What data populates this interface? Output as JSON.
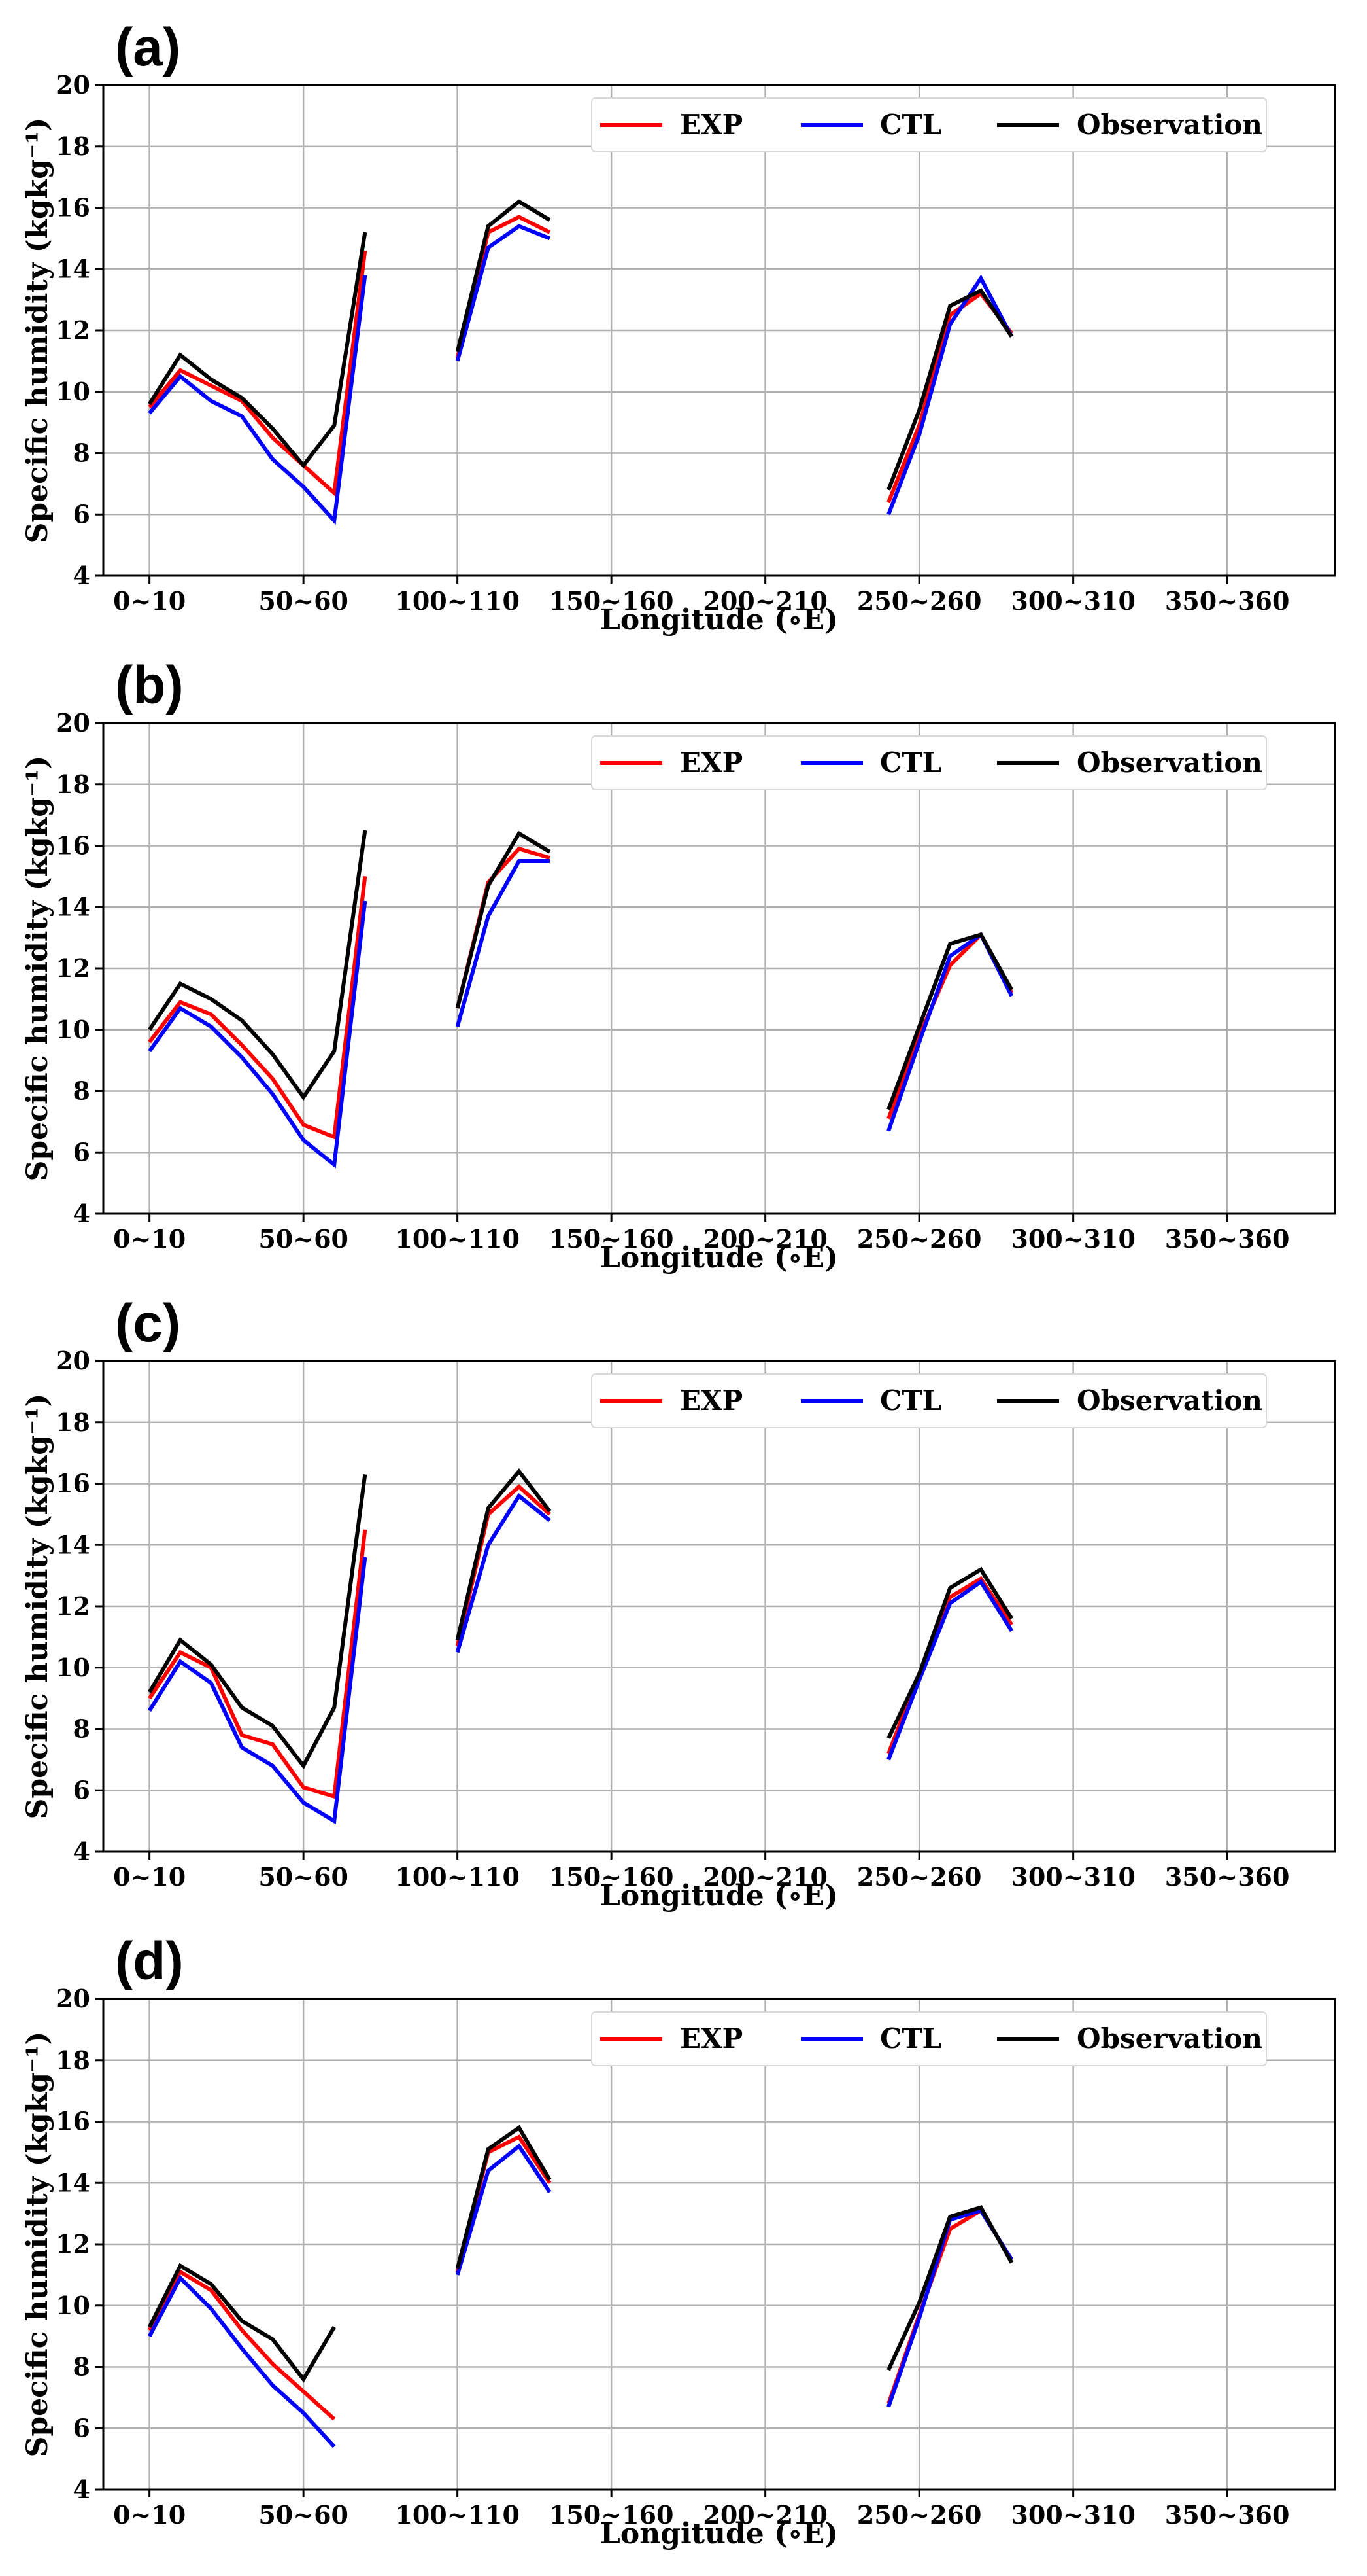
{
  "chart_data": [
    {
      "type": "line",
      "panel_label": "(a)",
      "xlabel": "Longitude (∘E)",
      "ylabel": "Specific humidity (kgkg⁻¹)",
      "xlim": [
        -3,
        77
      ],
      "ylim": [
        4,
        20
      ],
      "yticks": [
        4,
        6,
        8,
        10,
        12,
        14,
        16,
        18,
        20
      ],
      "xtick_positions": [
        0,
        10,
        20,
        30,
        40,
        50,
        60,
        70
      ],
      "xtick_labels": [
        "0~10",
        "50~60",
        "100~110",
        "150~160",
        "200~210",
        "250~260",
        "300~310",
        "350~360"
      ],
      "legend": [
        "EXP",
        "CTL",
        "Observation"
      ],
      "series": [
        {
          "name": "EXP",
          "color": "#ff0000",
          "segments": [
            {
              "x": [
                0,
                2,
                4,
                6,
                8,
                10,
                12,
                14
              ],
              "y": [
                9.5,
                10.7,
                10.2,
                9.7,
                8.5,
                7.6,
                6.7,
                14.6
              ]
            },
            {
              "x": [
                20,
                22,
                24,
                26
              ],
              "y": [
                11.1,
                15.2,
                15.7,
                15.2
              ]
            },
            {
              "x": [
                48,
                50,
                52,
                54,
                56
              ],
              "y": [
                6.4,
                8.9,
                12.5,
                13.2,
                11.9
              ]
            }
          ]
        },
        {
          "name": "CTL",
          "color": "#0000ff",
          "segments": [
            {
              "x": [
                0,
                2,
                4,
                6,
                8,
                10,
                12,
                14
              ],
              "y": [
                9.3,
                10.5,
                9.7,
                9.2,
                7.8,
                6.9,
                5.8,
                13.8
              ]
            },
            {
              "x": [
                20,
                22,
                24,
                26
              ],
              "y": [
                11.0,
                14.7,
                15.4,
                15.0
              ]
            },
            {
              "x": [
                48,
                50,
                52,
                54,
                56
              ],
              "y": [
                6.0,
                8.6,
                12.2,
                13.7,
                11.8
              ]
            }
          ]
        },
        {
          "name": "Observation",
          "color": "#000000",
          "segments": [
            {
              "x": [
                0,
                2,
                4,
                6,
                8,
                10,
                12,
                14
              ],
              "y": [
                9.6,
                11.2,
                10.4,
                9.8,
                8.8,
                7.6,
                8.9,
                15.2
              ]
            },
            {
              "x": [
                20,
                22,
                24,
                26
              ],
              "y": [
                11.3,
                15.4,
                16.2,
                15.6
              ]
            },
            {
              "x": [
                48,
                50,
                52,
                54,
                56
              ],
              "y": [
                6.8,
                9.4,
                12.8,
                13.3,
                11.8
              ]
            }
          ]
        }
      ]
    },
    {
      "type": "line",
      "panel_label": "(b)",
      "xlabel": "Longitude (∘E)",
      "ylabel": "Specific humidity (kgkg⁻¹)",
      "xlim": [
        -3,
        77
      ],
      "ylim": [
        4,
        20
      ],
      "yticks": [
        4,
        6,
        8,
        10,
        12,
        14,
        16,
        18,
        20
      ],
      "xtick_positions": [
        0,
        10,
        20,
        30,
        40,
        50,
        60,
        70
      ],
      "xtick_labels": [
        "0~10",
        "50~60",
        "100~110",
        "150~160",
        "200~210",
        "250~260",
        "300~310",
        "350~360"
      ],
      "legend": [
        "EXP",
        "CTL",
        "Observation"
      ],
      "series": [
        {
          "name": "EXP",
          "color": "#ff0000",
          "segments": [
            {
              "x": [
                0,
                2,
                4,
                6,
                8,
                10,
                12,
                14
              ],
              "y": [
                9.6,
                10.9,
                10.5,
                9.5,
                8.4,
                6.9,
                6.5,
                15.0
              ]
            },
            {
              "x": [
                20,
                22,
                24,
                26
              ],
              "y": [
                10.7,
                14.8,
                15.9,
                15.6
              ]
            },
            {
              "x": [
                48,
                50,
                52,
                54,
                56
              ],
              "y": [
                7.1,
                9.8,
                12.1,
                13.1,
                11.2
              ]
            }
          ]
        },
        {
          "name": "CTL",
          "color": "#0000ff",
          "segments": [
            {
              "x": [
                0,
                2,
                4,
                6,
                8,
                10,
                12,
                14
              ],
              "y": [
                9.3,
                10.7,
                10.1,
                9.1,
                7.9,
                6.4,
                5.6,
                14.2
              ]
            },
            {
              "x": [
                20,
                22,
                24,
                26
              ],
              "y": [
                10.1,
                13.7,
                15.5,
                15.5
              ]
            },
            {
              "x": [
                48,
                50,
                52,
                54,
                56
              ],
              "y": [
                6.7,
                9.6,
                12.4,
                13.1,
                11.1
              ]
            }
          ]
        },
        {
          "name": "Observation",
          "color": "#000000",
          "segments": [
            {
              "x": [
                0,
                2,
                4,
                6,
                8,
                10,
                12,
                14
              ],
              "y": [
                10.0,
                11.5,
                11.0,
                10.3,
                9.2,
                7.8,
                9.3,
                16.5
              ]
            },
            {
              "x": [
                20,
                22,
                24,
                26
              ],
              "y": [
                10.7,
                14.7,
                16.4,
                15.8
              ]
            },
            {
              "x": [
                48,
                50,
                52,
                54,
                56
              ],
              "y": [
                7.4,
                10.1,
                12.8,
                13.1,
                11.3
              ]
            }
          ]
        }
      ]
    },
    {
      "type": "line",
      "panel_label": "(c)",
      "xlabel": "Longitude (∘E)",
      "ylabel": "Specific humidity (kgkg⁻¹)",
      "xlim": [
        -3,
        77
      ],
      "ylim": [
        4,
        20
      ],
      "yticks": [
        4,
        6,
        8,
        10,
        12,
        14,
        16,
        18,
        20
      ],
      "xtick_positions": [
        0,
        10,
        20,
        30,
        40,
        50,
        60,
        70
      ],
      "xtick_labels": [
        "0~10",
        "50~60",
        "100~110",
        "150~160",
        "200~210",
        "250~260",
        "300~310",
        "350~360"
      ],
      "legend": [
        "EXP",
        "CTL",
        "Observation"
      ],
      "series": [
        {
          "name": "EXP",
          "color": "#ff0000",
          "segments": [
            {
              "x": [
                0,
                2,
                4,
                6,
                8,
                10,
                12,
                14
              ],
              "y": [
                9.0,
                10.5,
                10.0,
                7.8,
                7.5,
                6.1,
                5.8,
                14.5
              ]
            },
            {
              "x": [
                20,
                22,
                24,
                26
              ],
              "y": [
                10.7,
                15.0,
                15.9,
                15.0
              ]
            },
            {
              "x": [
                48,
                50,
                52,
                54,
                56
              ],
              "y": [
                7.2,
                9.8,
                12.3,
                12.9,
                11.4
              ]
            }
          ]
        },
        {
          "name": "CTL",
          "color": "#0000ff",
          "segments": [
            {
              "x": [
                0,
                2,
                4,
                6,
                8,
                10,
                12,
                14
              ],
              "y": [
                8.6,
                10.2,
                9.5,
                7.4,
                6.8,
                5.6,
                5.0,
                13.6
              ]
            },
            {
              "x": [
                20,
                22,
                24,
                26
              ],
              "y": [
                10.5,
                14.0,
                15.6,
                14.8
              ]
            },
            {
              "x": [
                48,
                50,
                52,
                54,
                56
              ],
              "y": [
                7.0,
                9.6,
                12.1,
                12.8,
                11.2
              ]
            }
          ]
        },
        {
          "name": "Observation",
          "color": "#000000",
          "segments": [
            {
              "x": [
                0,
                2,
                4,
                6,
                8,
                10,
                12,
                14
              ],
              "y": [
                9.2,
                10.9,
                10.1,
                8.7,
                8.1,
                6.8,
                8.7,
                16.3
              ]
            },
            {
              "x": [
                20,
                22,
                24,
                26
              ],
              "y": [
                10.9,
                15.2,
                16.4,
                15.1
              ]
            },
            {
              "x": [
                48,
                50,
                52,
                54,
                56
              ],
              "y": [
                7.7,
                9.8,
                12.6,
                13.2,
                11.6
              ]
            }
          ]
        }
      ]
    },
    {
      "type": "line",
      "panel_label": "(d)",
      "xlabel": "Longitude (∘E)",
      "ylabel": "Specific humidity (kgkg⁻¹)",
      "xlim": [
        -3,
        77
      ],
      "ylim": [
        4,
        20
      ],
      "yticks": [
        4,
        6,
        8,
        10,
        12,
        14,
        16,
        18,
        20
      ],
      "xtick_positions": [
        0,
        10,
        20,
        30,
        40,
        50,
        60,
        70
      ],
      "xtick_labels": [
        "0~10",
        "50~60",
        "100~110",
        "150~160",
        "200~210",
        "250~260",
        "300~310",
        "350~360"
      ],
      "legend": [
        "EXP",
        "CTL",
        "Observation"
      ],
      "series": [
        {
          "name": "EXP",
          "color": "#ff0000",
          "segments": [
            {
              "x": [
                0,
                2,
                4,
                6,
                8,
                10,
                12
              ],
              "y": [
                9.2,
                11.1,
                10.5,
                9.2,
                8.1,
                7.2,
                6.3
              ]
            },
            {
              "x": [
                20,
                22,
                24,
                26
              ],
              "y": [
                11.1,
                15.0,
                15.5,
                14.0
              ]
            },
            {
              "x": [
                48,
                50,
                52,
                54,
                56
              ],
              "y": [
                6.8,
                9.7,
                12.5,
                13.1,
                11.5
              ]
            }
          ]
        },
        {
          "name": "CTL",
          "color": "#0000ff",
          "segments": [
            {
              "x": [
                0,
                2,
                4,
                6,
                8,
                10,
                12
              ],
              "y": [
                9.0,
                10.9,
                9.9,
                8.6,
                7.4,
                6.5,
                5.4
              ]
            },
            {
              "x": [
                20,
                22,
                24,
                26
              ],
              "y": [
                11.0,
                14.4,
                15.2,
                13.7
              ]
            },
            {
              "x": [
                48,
                50,
                52,
                54,
                56
              ],
              "y": [
                6.7,
                9.6,
                12.8,
                13.1,
                11.5
              ]
            }
          ]
        },
        {
          "name": "Observation",
          "color": "#000000",
          "segments": [
            {
              "x": [
                0,
                2,
                4,
                6,
                8,
                10,
                12
              ],
              "y": [
                9.3,
                11.3,
                10.7,
                9.5,
                8.9,
                7.6,
                9.3
              ]
            },
            {
              "x": [
                20,
                22,
                24,
                26
              ],
              "y": [
                11.2,
                15.1,
                15.8,
                14.1
              ]
            },
            {
              "x": [
                48,
                50,
                52,
                54,
                56
              ],
              "y": [
                7.9,
                10.1,
                12.9,
                13.2,
                11.4
              ]
            }
          ]
        }
      ]
    }
  ]
}
